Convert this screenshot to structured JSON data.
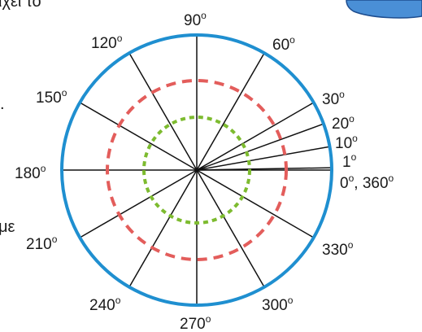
{
  "page_fragments": {
    "top_left_text": "ιχει το",
    "mid_left_text": "με",
    "mid_left_dot": "."
  },
  "diagram": {
    "degree_symbol": "o",
    "outer_circle_color": "#1f8fd0",
    "mid_circle_color": "#e35d5b",
    "inner_circle_color": "#7dbb2f",
    "line_color": "#111111",
    "angles": [
      0,
      1,
      10,
      20,
      30,
      60,
      90,
      120,
      150,
      180,
      210,
      240,
      270,
      300,
      330
    ],
    "labels": [
      {
        "id": "0-360",
        "parts": [
          "0",
          "o",
          ", 360",
          "o"
        ]
      },
      {
        "id": "1",
        "parts": [
          "1",
          "o"
        ]
      },
      {
        "id": "10",
        "parts": [
          "10",
          "o"
        ]
      },
      {
        "id": "20",
        "parts": [
          "20",
          "o"
        ]
      },
      {
        "id": "30",
        "parts": [
          "30",
          "o"
        ]
      },
      {
        "id": "60",
        "parts": [
          "60",
          "o"
        ]
      },
      {
        "id": "90",
        "parts": [
          "90",
          "o"
        ]
      },
      {
        "id": "120",
        "parts": [
          "120",
          "o"
        ]
      },
      {
        "id": "150",
        "parts": [
          "150",
          "o"
        ]
      },
      {
        "id": "180",
        "parts": [
          "180",
          "o"
        ]
      },
      {
        "id": "210",
        "parts": [
          "210",
          "o"
        ]
      },
      {
        "id": "240",
        "parts": [
          "240",
          "o"
        ]
      },
      {
        "id": "270",
        "parts": [
          "270",
          "o"
        ]
      },
      {
        "id": "300",
        "parts": [
          "300",
          "o"
        ]
      },
      {
        "id": "330",
        "parts": [
          "330",
          "o"
        ]
      }
    ]
  }
}
